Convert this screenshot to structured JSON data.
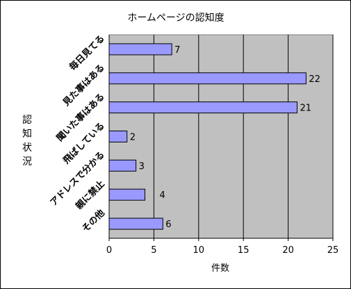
{
  "chart_data": {
    "type": "bar",
    "orientation": "horizontal",
    "title": "ホームページの認知度",
    "xlabel": "件数",
    "ylabel": "認知状況",
    "categories": [
      "毎日見てる",
      "見た事はある",
      "聞いた事はある",
      "飛ばしている",
      "アドレスで分かる",
      "親に禁止",
      "その他"
    ],
    "values": [
      7,
      22,
      21,
      2,
      3,
      4,
      6
    ],
    "xlim": [
      0,
      25
    ],
    "xticks": [
      0,
      5,
      10,
      15,
      20,
      25
    ],
    "grid": true,
    "legend": "none",
    "colors": {
      "bar_fill": "#9999ff",
      "bar_stroke": "#000000",
      "plot_background": "#c0c0c0",
      "grid": "#000000"
    }
  }
}
